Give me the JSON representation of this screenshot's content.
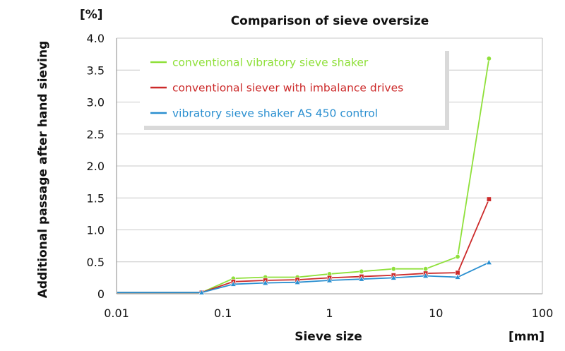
{
  "chart_data": {
    "type": "line",
    "title": "Comparison of sieve oversize",
    "xlabel": "Sieve size",
    "ylabel": "Additional passage after hand sieving",
    "x_unit": "[mm]",
    "y_unit": "[%]",
    "x_scale": "log",
    "xlim": [
      0.01,
      100
    ],
    "ylim": [
      0,
      4.0
    ],
    "x_ticks": [
      "0.01",
      "0.1",
      "1",
      "10",
      "100"
    ],
    "y_ticks": [
      "0",
      "0.5",
      "1.0",
      "1.5",
      "2.0",
      "2.5",
      "3.0",
      "3.5",
      "4.0"
    ],
    "grid": "horizontal",
    "legend_position": "top-left",
    "series": [
      {
        "name": "conventional vibratory sieve shaker",
        "color": "#8fe03a",
        "marker": "circle",
        "x": [
          0.063,
          0.125,
          0.25,
          0.5,
          1,
          2,
          4,
          8,
          16,
          31.5
        ],
        "y": [
          0.02,
          0.24,
          0.26,
          0.26,
          0.31,
          0.35,
          0.39,
          0.39,
          0.58,
          3.68
        ]
      },
      {
        "name": "conventional siever with imbalance drives",
        "color": "#cc2a2a",
        "marker": "square",
        "x": [
          0.063,
          0.125,
          0.25,
          0.5,
          1,
          2,
          4,
          8,
          16,
          31.5
        ],
        "y": [
          0.02,
          0.19,
          0.21,
          0.22,
          0.25,
          0.27,
          0.29,
          0.32,
          0.33,
          1.48
        ]
      },
      {
        "name": "vibratory sieve shaker AS 450 control",
        "color": "#2a8fd0",
        "marker": "triangle",
        "x": [
          0.063,
          0.125,
          0.25,
          0.5,
          1,
          2,
          4,
          8,
          16,
          31.5
        ],
        "y": [
          0.02,
          0.15,
          0.17,
          0.18,
          0.21,
          0.23,
          0.25,
          0.28,
          0.26,
          0.49
        ]
      }
    ]
  }
}
